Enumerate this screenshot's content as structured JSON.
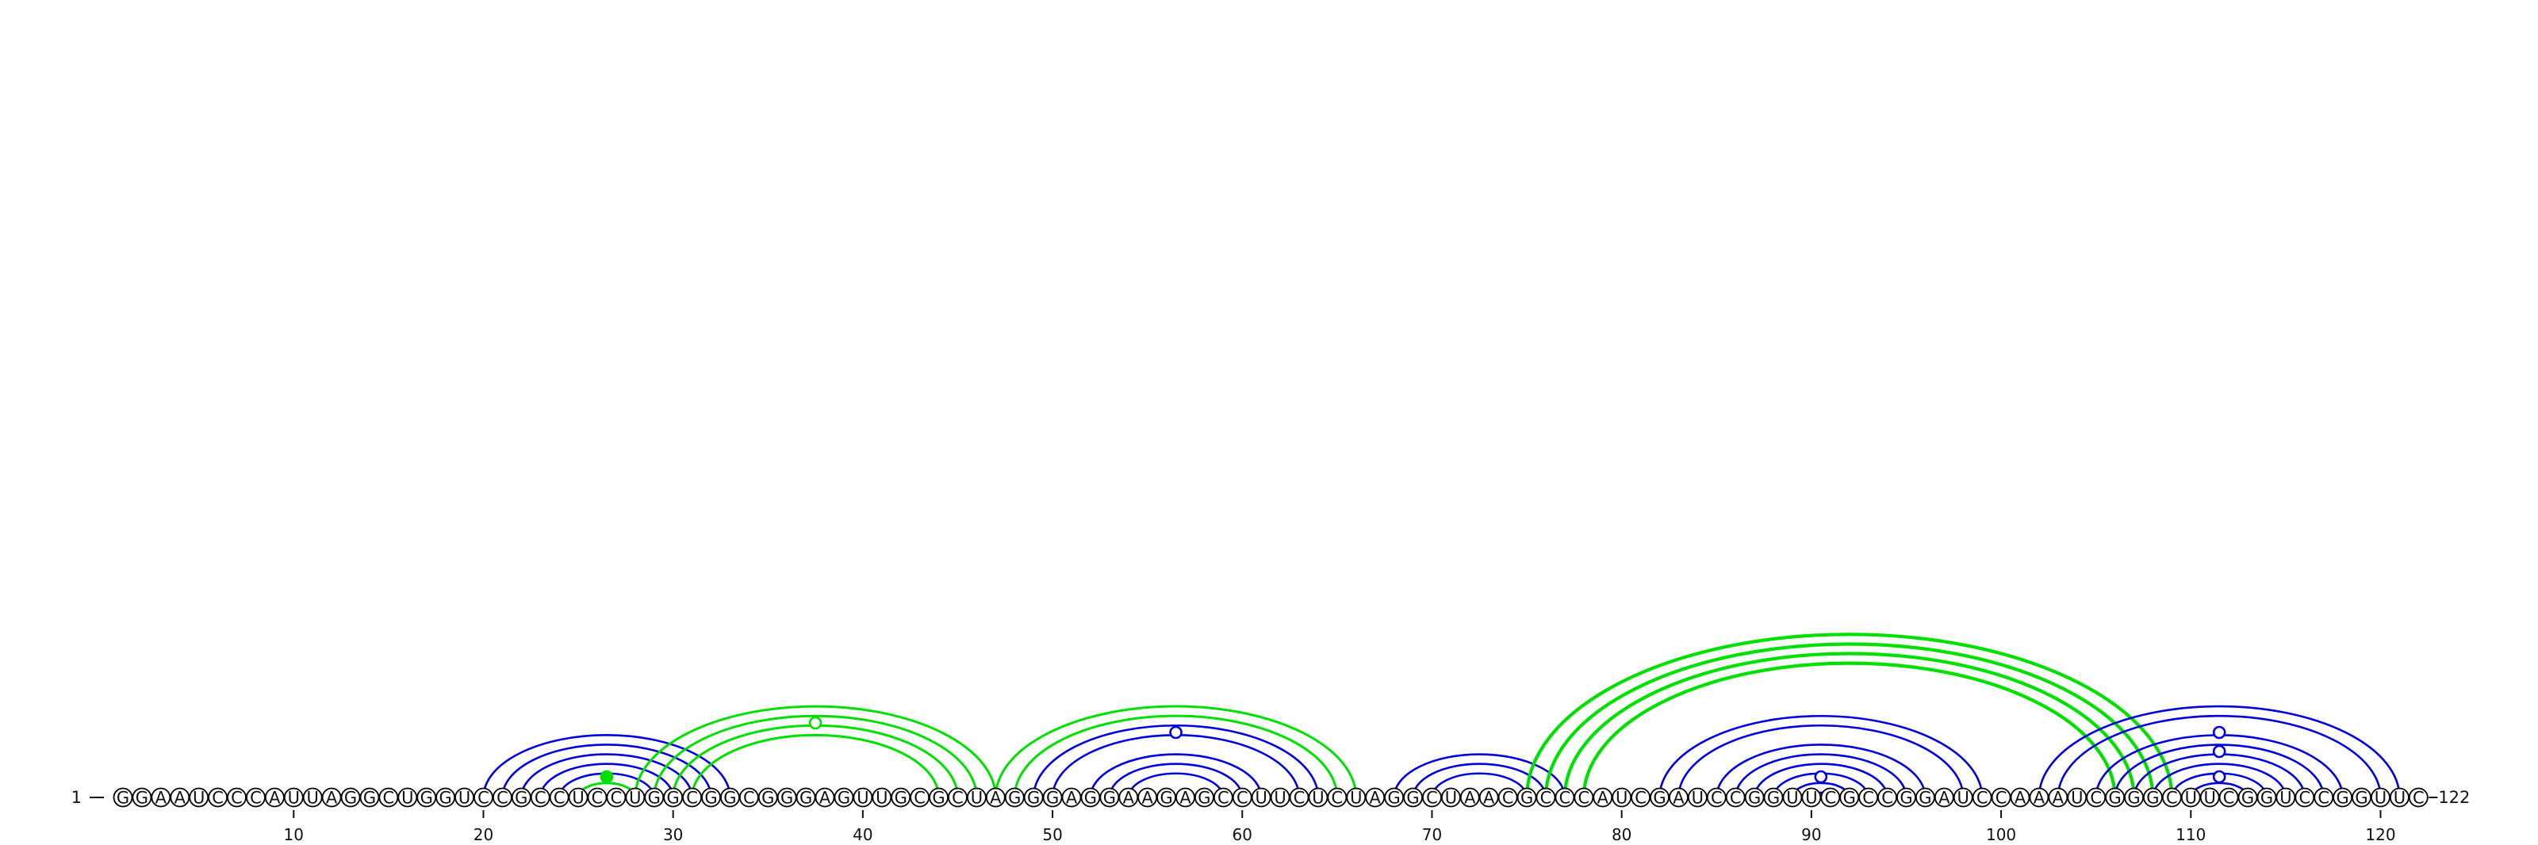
{
  "sequence": "GGAAUCCCAUUAGGCUGGUCCGCCUCCUGGCGGCGGGAGUUGCGCUAGGGAGGAAGAGCCUUCUCUAGGCUAACGCCCAUCGAUCCGGUUCGCCGGAUCCAAAUCGGGCUUCGGUCCGGUUC",
  "start_label": "1",
  "end_label": "122",
  "ticks": [
    10,
    20,
    30,
    40,
    50,
    60,
    70,
    80,
    90,
    100,
    110,
    120
  ],
  "colors": {
    "blue": "#0000dd",
    "green": "#00e000",
    "circle_stroke": "#000000",
    "circle_fill": "#ffffff"
  },
  "arcs": [
    {
      "i": 20,
      "j": 33,
      "color": "blue"
    },
    {
      "i": 21,
      "j": 32,
      "color": "blue"
    },
    {
      "i": 22,
      "j": 31,
      "color": "blue"
    },
    {
      "i": 23,
      "j": 30,
      "color": "blue"
    },
    {
      "i": 24,
      "j": 29,
      "color": "blue"
    },
    {
      "i": 25,
      "j": 28,
      "color": "blue"
    },
    {
      "i": 25,
      "j": 28,
      "color": "green"
    },
    {
      "i": 28,
      "j": 47,
      "color": "green"
    },
    {
      "i": 29,
      "j": 46,
      "color": "green"
    },
    {
      "i": 30,
      "j": 45,
      "color": "green"
    },
    {
      "i": 31,
      "j": 44,
      "color": "green"
    },
    {
      "i": 47,
      "j": 66,
      "color": "green"
    },
    {
      "i": 48,
      "j": 65,
      "color": "green"
    },
    {
      "i": 49,
      "j": 64,
      "color": "blue"
    },
    {
      "i": 50,
      "j": 63,
      "color": "blue"
    },
    {
      "i": 52,
      "j": 61,
      "color": "blue"
    },
    {
      "i": 53,
      "j": 60,
      "color": "blue"
    },
    {
      "i": 54,
      "j": 59,
      "color": "blue"
    },
    {
      "i": 68,
      "j": 77,
      "color": "blue"
    },
    {
      "i": 69,
      "j": 76,
      "color": "blue"
    },
    {
      "i": 70,
      "j": 75,
      "color": "blue"
    },
    {
      "i": 75,
      "j": 109,
      "color": "green"
    },
    {
      "i": 76,
      "j": 108,
      "color": "green"
    },
    {
      "i": 77,
      "j": 107,
      "color": "green"
    },
    {
      "i": 78,
      "j": 106,
      "color": "green"
    },
    {
      "i": 82,
      "j": 99,
      "color": "blue"
    },
    {
      "i": 83,
      "j": 98,
      "color": "blue"
    },
    {
      "i": 85,
      "j": 96,
      "color": "blue"
    },
    {
      "i": 86,
      "j": 95,
      "color": "blue"
    },
    {
      "i": 87,
      "j": 94,
      "color": "blue"
    },
    {
      "i": 88,
      "j": 93,
      "color": "blue"
    },
    {
      "i": 89,
      "j": 92,
      "color": "blue"
    },
    {
      "i": 90,
      "j": 91,
      "color": "blue"
    },
    {
      "i": 102,
      "j": 121,
      "color": "blue"
    },
    {
      "i": 103,
      "j": 120,
      "color": "blue"
    },
    {
      "i": 105,
      "j": 118,
      "color": "blue"
    },
    {
      "i": 106,
      "j": 117,
      "color": "blue"
    },
    {
      "i": 107,
      "j": 116,
      "color": "blue"
    },
    {
      "i": 108,
      "j": 115,
      "color": "blue"
    },
    {
      "i": 109,
      "j": 114,
      "color": "blue"
    },
    {
      "i": 110,
      "j": 113,
      "color": "blue"
    }
  ],
  "markers": [
    {
      "i": 26.5,
      "h": 1,
      "color": "green",
      "filled": true
    },
    {
      "i": 37.5,
      "h": 6,
      "color": "green",
      "filled": false
    },
    {
      "i": 56.5,
      "h": 5,
      "color": "blue",
      "filled": false
    },
    {
      "i": 90.5,
      "h": 1,
      "color": "blue",
      "filled": false
    },
    {
      "i": 111.5,
      "h": 1,
      "color": "blue",
      "filled": false
    },
    {
      "i": 111.5,
      "h": 3,
      "color": "blue",
      "filled": false
    },
    {
      "i": 111.5,
      "h": 5,
      "color": "blue",
      "filled": false
    }
  ]
}
